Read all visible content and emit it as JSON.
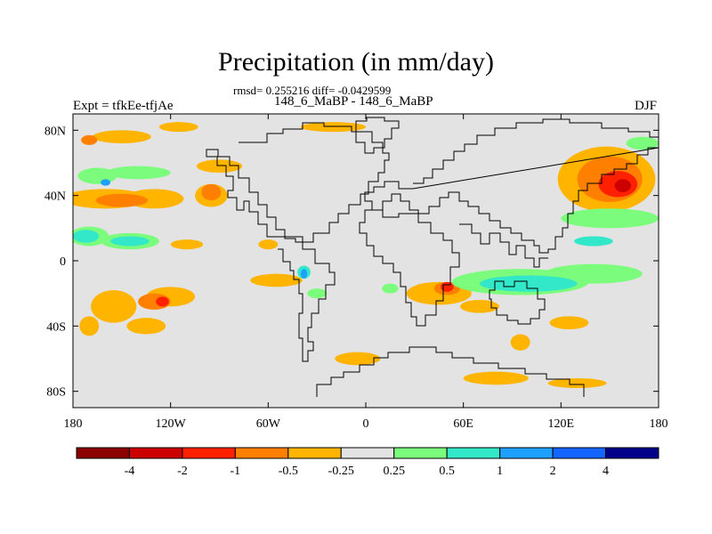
{
  "title": "Precipitation (in mm/day)",
  "stats_line": "rmsd= 0.255216 diff= -0.0429599",
  "left_label": "Expt = tfkEe-tfjAe",
  "center_label": "148_6_MaBP - 148_6_MaBP",
  "right_label": "DJF",
  "map": {
    "projection": "cylindrical equidistant",
    "lon_range": [
      -180,
      180
    ],
    "lat_range": [
      -90,
      90
    ],
    "background_color": "#e3e3e3",
    "coastline_color": "#000000"
  },
  "x_ticks": [
    {
      "value": -180,
      "label": "180"
    },
    {
      "value": -120,
      "label": "120W"
    },
    {
      "value": -60,
      "label": "60W"
    },
    {
      "value": 0,
      "label": "0"
    },
    {
      "value": 60,
      "label": "60E"
    },
    {
      "value": 120,
      "label": "120E"
    },
    {
      "value": 180,
      "label": "180"
    }
  ],
  "y_ticks": [
    {
      "value": 80,
      "label": "80N"
    },
    {
      "value": 40,
      "label": "40N"
    },
    {
      "value": 0,
      "label": "0"
    },
    {
      "value": -40,
      "label": "40S"
    },
    {
      "value": -80,
      "label": "80S"
    }
  ],
  "colorbar": {
    "colors": [
      "#8b0000",
      "#cc0000",
      "#ff2000",
      "#ff7f00",
      "#ffb400",
      "#e3e3e3",
      "#7cfc7c",
      "#33e8c8",
      "#1ea0ff",
      "#1464ff",
      "#00008b"
    ],
    "labels": [
      "-4",
      "-2",
      "-1",
      "-0.5",
      "-0.25",
      "0.25",
      "0.5",
      "1",
      "2",
      "4"
    ]
  },
  "contour_regions": [
    {
      "level": "-0.25",
      "color": "#ffb400",
      "blobs": [
        [
          -160,
          38,
          26,
          6
        ],
        [
          -130,
          38,
          18,
          6
        ],
        [
          -95,
          40,
          10,
          7
        ],
        [
          -150,
          76,
          18,
          4
        ],
        [
          -115,
          82,
          12,
          3
        ],
        [
          -90,
          58,
          14,
          4
        ],
        [
          -155,
          -28,
          14,
          10
        ],
        [
          -120,
          -22,
          15,
          6
        ],
        [
          -135,
          -40,
          12,
          5
        ],
        [
          -55,
          -12,
          16,
          4
        ],
        [
          45,
          -20,
          20,
          7
        ],
        [
          70,
          -28,
          12,
          4
        ],
        [
          95,
          -50,
          6,
          5
        ],
        [
          125,
          -38,
          12,
          4
        ],
        [
          -5,
          -60,
          14,
          4
        ],
        [
          80,
          -72,
          20,
          4
        ],
        [
          130,
          -75,
          18,
          3
        ],
        [
          148,
          50,
          30,
          20
        ],
        [
          -110,
          10,
          10,
          3
        ],
        [
          -60,
          10,
          6,
          3
        ],
        [
          -170,
          -40,
          6,
          6
        ],
        [
          -20,
          82,
          20,
          3
        ]
      ]
    },
    {
      "level": "-0.5",
      "color": "#ff7f00",
      "blobs": [
        [
          -150,
          37,
          16,
          4
        ],
        [
          -95,
          42,
          6,
          5
        ],
        [
          -130,
          -25,
          10,
          5
        ],
        [
          50,
          -17,
          8,
          4
        ],
        [
          150,
          50,
          20,
          14
        ],
        [
          -170,
          74,
          5,
          3
        ]
      ]
    },
    {
      "level": "-1",
      "color": "#ff2000",
      "blobs": [
        [
          -125,
          -25,
          4,
          3
        ],
        [
          50,
          -16,
          4,
          3
        ],
        [
          155,
          47,
          12,
          8
        ]
      ]
    },
    {
      "level": "-2",
      "color": "#cc0000",
      "blobs": [
        [
          158,
          46,
          5,
          4
        ]
      ]
    },
    {
      "level": "0.25",
      "color": "#7cfc7c",
      "blobs": [
        [
          -170,
          15,
          12,
          6
        ],
        [
          -145,
          12,
          18,
          5
        ],
        [
          -165,
          52,
          12,
          5
        ],
        [
          -140,
          54,
          20,
          4
        ],
        [
          95,
          -13,
          42,
          8
        ],
        [
          140,
          -8,
          30,
          6
        ],
        [
          150,
          26,
          30,
          6
        ],
        [
          -30,
          -20,
          6,
          3
        ],
        [
          15,
          -17,
          5,
          3
        ],
        [
          170,
          72,
          10,
          4
        ]
      ]
    },
    {
      "level": "0.5",
      "color": "#33e8c8",
      "blobs": [
        [
          -172,
          15,
          8,
          4
        ],
        [
          -145,
          12,
          12,
          3
        ],
        [
          100,
          -14,
          30,
          5
        ],
        [
          140,
          12,
          12,
          3
        ],
        [
          -38,
          -7,
          4,
          4
        ]
      ]
    },
    {
      "level": "1",
      "color": "#1ea0ff",
      "blobs": [
        [
          -160,
          48,
          3,
          2
        ],
        [
          -38,
          -8,
          2,
          3
        ]
      ]
    }
  ]
}
